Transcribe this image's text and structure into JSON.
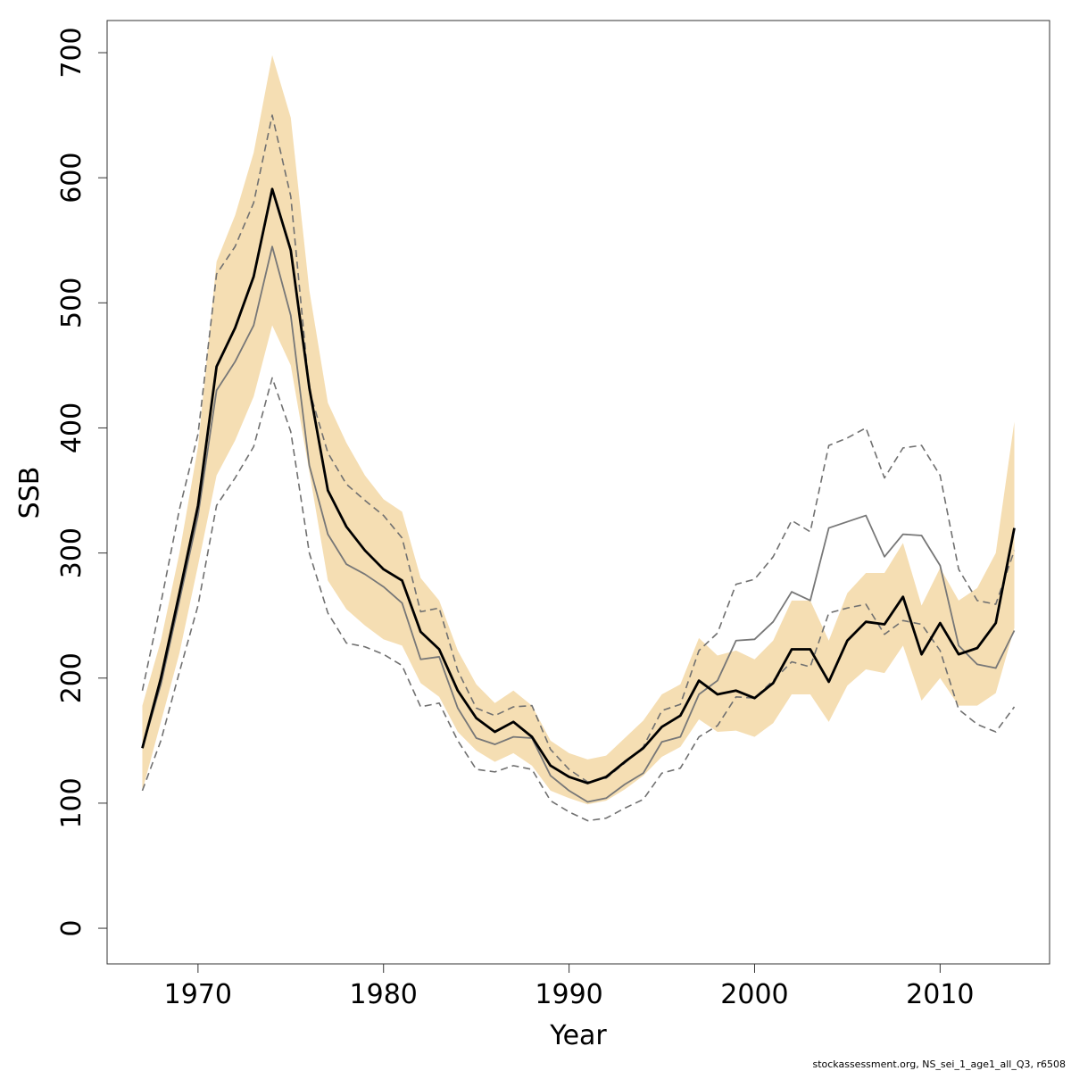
{
  "chart_data": {
    "type": "line",
    "x_label": "Year",
    "y_label": "SSB",
    "footnote": "stockassessment.org, NS_sei_1_age1_all_Q3, r6508",
    "x": [
      1967,
      1968,
      1969,
      1970,
      1971,
      1972,
      1973,
      1974,
      1975,
      1976,
      1977,
      1978,
      1979,
      1980,
      1981,
      1982,
      1983,
      1984,
      1985,
      1986,
      1987,
      1988,
      1989,
      1990,
      1991,
      1992,
      1993,
      1994,
      1995,
      1996,
      1997,
      1998,
      1999,
      2000,
      2001,
      2002,
      2003,
      2004,
      2005,
      2006,
      2007,
      2008,
      2009,
      2010,
      2011,
      2012,
      2013,
      2014
    ],
    "xlim": [
      1965.1,
      2015.9
    ],
    "xticks": [
      1970,
      1980,
      1990,
      2000,
      2010
    ],
    "ylim": [
      -28.5,
      725.7
    ],
    "yticks": [
      0,
      100,
      200,
      300,
      400,
      500,
      600,
      700
    ],
    "band": {
      "color": "#f5deb3",
      "lower": [
        110,
        165,
        220,
        290,
        362,
        390,
        425,
        482,
        450,
        365,
        278,
        255,
        242,
        231,
        226,
        196,
        185,
        157,
        142,
        133,
        140,
        130,
        110,
        104,
        99,
        102,
        111,
        122,
        137,
        145,
        167,
        157,
        158,
        153,
        164,
        187,
        187,
        165,
        194,
        207,
        204,
        226,
        182,
        200,
        178,
        178,
        188,
        240
      ],
      "upper": [
        178,
        230,
        300,
        385,
        533,
        570,
        620,
        698,
        648,
        510,
        420,
        388,
        362,
        343,
        333,
        280,
        262,
        222,
        195,
        180,
        190,
        178,
        150,
        140,
        135,
        138,
        152,
        166,
        187,
        195,
        232,
        218,
        222,
        215,
        230,
        262,
        262,
        230,
        268,
        284,
        284,
        308,
        258,
        288,
        262,
        272,
        300,
        405
      ]
    },
    "series": [
      {
        "color": "#707070",
        "style": "dashed",
        "values": [
          190,
          260,
          335,
          395,
          523,
          545,
          580,
          650,
          585,
          430,
          380,
          355,
          342,
          330,
          312,
          253,
          256,
          206,
          176,
          170,
          177,
          178,
          143,
          127,
          117,
          120,
          132,
          145,
          174,
          179,
          222,
          236,
          275,
          279,
          297,
          326,
          317,
          386,
          392,
          400,
          360,
          384,
          386,
          362,
          287,
          262,
          259,
          302
        ]
      },
      {
        "color": "#707070",
        "style": "dashed",
        "values": [
          110,
          150,
          205,
          258,
          338,
          360,
          385,
          440,
          397,
          300,
          252,
          228,
          225,
          219,
          210,
          177,
          180,
          150,
          127,
          125,
          130,
          127,
          102,
          93,
          86,
          88,
          96,
          103,
          124,
          128,
          153,
          162,
          185,
          184,
          198,
          213,
          209,
          252,
          256,
          259,
          235,
          246,
          243,
          222,
          175,
          163,
          157,
          177
        ]
      },
      {
        "color": "#777777",
        "style": "solid",
        "values": [
          144,
          195,
          262,
          330,
          430,
          453,
          482,
          545,
          490,
          370,
          315,
          291,
          283,
          273,
          260,
          215,
          217,
          176,
          152,
          147,
          153,
          152,
          122,
          110,
          101,
          104,
          115,
          124,
          149,
          153,
          187,
          198,
          230,
          231,
          245,
          269,
          262,
          320,
          325,
          330,
          297,
          315,
          314,
          290,
          226,
          211,
          208,
          238
        ]
      },
      {
        "color": "#000000",
        "style": "bold",
        "values": [
          144,
          200,
          268,
          338,
          449,
          480,
          521,
          591,
          542,
          432,
          350,
          321,
          302,
          287,
          278,
          237,
          223,
          190,
          168,
          157,
          165,
          153,
          130,
          121,
          116,
          121,
          133,
          144,
          161,
          170,
          198,
          187,
          190,
          184,
          196,
          223,
          223,
          197,
          230,
          245,
          243,
          265,
          219,
          244,
          219,
          224,
          244,
          320
        ]
      }
    ]
  }
}
